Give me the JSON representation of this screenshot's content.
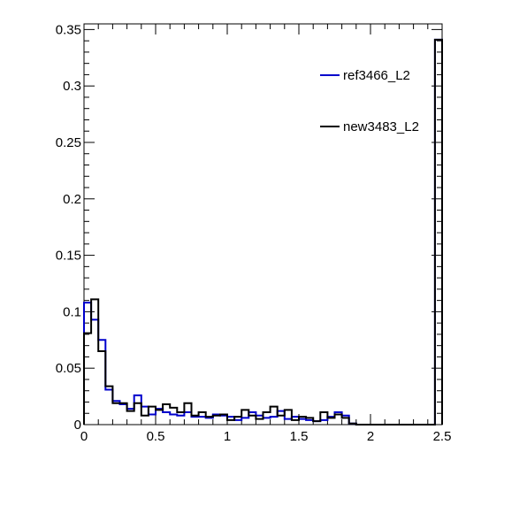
{
  "chart_data": {
    "type": "line",
    "title": "",
    "xlabel": "",
    "ylabel": "",
    "xlim": [
      0,
      2.5
    ],
    "ylim": [
      0,
      0.355
    ],
    "x_ticks": [
      0,
      0.5,
      1,
      1.5,
      2,
      2.5
    ],
    "x_tick_labels": [
      "0",
      "0.5",
      "1",
      "1.5",
      "2",
      "2.5"
    ],
    "y_ticks": [
      0,
      0.05,
      0.1,
      0.15,
      0.2,
      0.25,
      0.3,
      0.35
    ],
    "y_tick_labels": [
      "0",
      "0.05",
      "0.1",
      "0.15",
      "0.2",
      "0.25",
      "0.3",
      "0.35"
    ],
    "grid": false,
    "legend_position": "top-right",
    "bin_width": 0.05,
    "series": [
      {
        "name": "ref3466_L2",
        "color": "#0000cc",
        "values": [
          0.108,
          0.093,
          0.075,
          0.031,
          0.021,
          0.018,
          0.014,
          0.026,
          0.016,
          0.009,
          0.014,
          0.011,
          0.009,
          0.008,
          0.011,
          0.007,
          0.007,
          0.006,
          0.009,
          0.008,
          0.007,
          0.004,
          0.006,
          0.011,
          0.008,
          0.006,
          0.007,
          0.012,
          0.005,
          0.007,
          0.005,
          0.004,
          0.003,
          0.004,
          0.007,
          0.011,
          0.008,
          0.001,
          0.0,
          0.0,
          0.0,
          0.0,
          0.0,
          0.0,
          0.0,
          0.0,
          0.0,
          0.0,
          0.0,
          0.341
        ]
      },
      {
        "name": "new3483_L2",
        "color": "#000000",
        "values": [
          0.081,
          0.111,
          0.065,
          0.034,
          0.019,
          0.019,
          0.012,
          0.019,
          0.008,
          0.016,
          0.013,
          0.018,
          0.015,
          0.011,
          0.019,
          0.008,
          0.011,
          0.007,
          0.008,
          0.009,
          0.004,
          0.007,
          0.013,
          0.008,
          0.005,
          0.011,
          0.016,
          0.008,
          0.013,
          0.004,
          0.007,
          0.006,
          0.003,
          0.011,
          0.006,
          0.009,
          0.006,
          0.001,
          0.0,
          0.0,
          0.0,
          0.0,
          0.0,
          0.0,
          0.0,
          0.0,
          0.0,
          0.0,
          0.0,
          0.341
        ]
      }
    ]
  }
}
